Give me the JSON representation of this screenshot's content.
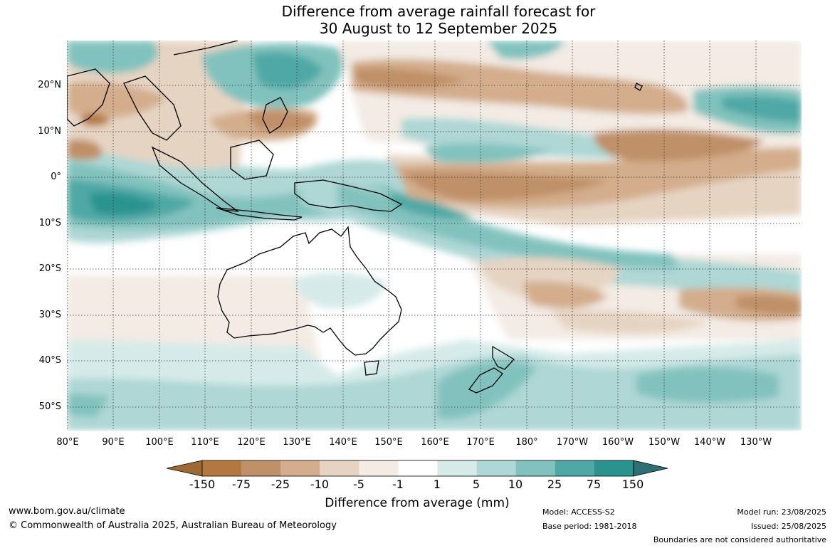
{
  "title": {
    "line1": "Difference from average rainfall forecast for",
    "line2": "30 August to 12 September 2025"
  },
  "map": {
    "lat_labels": [
      "20°N",
      "10°N",
      "0°",
      "10°S",
      "20°S",
      "30°S",
      "40°S",
      "50°S"
    ],
    "lon_labels": [
      "80°E",
      "90°E",
      "100°E",
      "110°E",
      "120°E",
      "130°E",
      "140°E",
      "150°E",
      "160°E",
      "170°E",
      "180°",
      "170°W",
      "160°W",
      "150°W",
      "140°W",
      "130°W"
    ]
  },
  "colorbar": {
    "title": "Difference from average (mm)",
    "ticks": [
      "-150",
      "-75",
      "-25",
      "-10",
      "-5",
      "-1",
      "1",
      "5",
      "10",
      "25",
      "75",
      "150"
    ],
    "colors": {
      "under": "#9d6a35",
      "bins": [
        "#b2783f",
        "#c09068",
        "#d3ad8c",
        "#e6d4c3",
        "#f3ebe4",
        "#ffffff",
        "#d6ebe9",
        "#aed7d5",
        "#82c2be",
        "#4fa8a5",
        "#2a938e"
      ],
      "over": "#2d6f72"
    }
  },
  "footer": {
    "website": "www.bom.gov.au/climate",
    "copyright": "© Commonwealth of Australia 2025, Australian Bureau of Meteorology",
    "model": "Model: ACCESS-S2",
    "base_period": "Base period: 1981-2018",
    "model_run": "Model run: 23/08/2025",
    "issued": "Issued: 25/08/2025",
    "disclaimer": "Boundaries are not considered authoritative"
  }
}
